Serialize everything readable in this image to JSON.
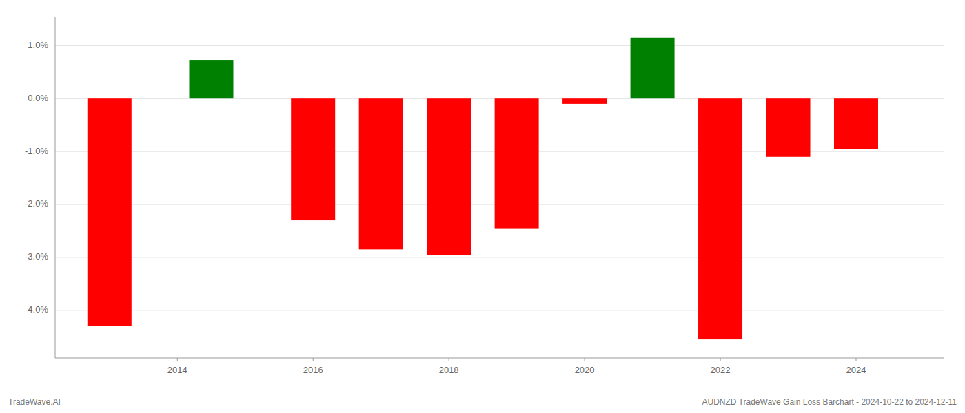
{
  "chart_data": {
    "type": "bar",
    "x": [
      2013.0,
      2014.5,
      2016.0,
      2017.0,
      2018.0,
      2019.0,
      2020.0,
      2021.0,
      2022.0,
      2023.0,
      2024.0
    ],
    "values": [
      -4.3,
      0.73,
      -2.3,
      -2.85,
      -2.95,
      -2.45,
      -0.1,
      1.15,
      -4.55,
      -1.1,
      -0.95
    ],
    "colors": [
      "#ff0000",
      "#008000",
      "#ff0000",
      "#ff0000",
      "#ff0000",
      "#ff0000",
      "#ff0000",
      "#008000",
      "#ff0000",
      "#ff0000",
      "#ff0000"
    ],
    "xlim": [
      2012.2,
      2025.3
    ],
    "xticks": [
      2014,
      2016,
      2018,
      2020,
      2022,
      2024
    ],
    "ylim": [
      -4.9,
      1.55
    ],
    "yticks": [
      {
        "value": 1.0,
        "label": "1.0%"
      },
      {
        "value": 0.0,
        "label": "0.0%"
      },
      {
        "value": -1.0,
        "label": "-1.0%"
      },
      {
        "value": -2.0,
        "label": "-2.0%"
      },
      {
        "value": -3.0,
        "label": "-3.0%"
      },
      {
        "value": -4.0,
        "label": "-4.0%"
      }
    ],
    "grid": true,
    "annotations": [
      "TradeWave.AI",
      "AUDNZD TradeWave Gain Loss Barchart - 2024-10-22 to 2024-12-11"
    ]
  }
}
